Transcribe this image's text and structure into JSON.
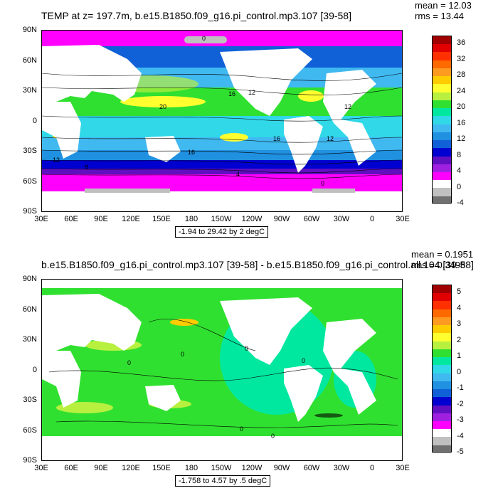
{
  "panels": [
    {
      "title": "TEMP at z= 197.7m, b.e15.B1850.f09_g16.pi_control.mp3.107 [39-58]",
      "mean_label": "mean = 12.03",
      "rms_label": "rms = 13.44",
      "range_label": "-1.94 to 29.42 by 2 degC",
      "lat_ticks": [
        "90N",
        "60N",
        "30N",
        "0",
        "30S",
        "60S",
        "90S"
      ],
      "lon_ticks": [
        "30E",
        "60E",
        "90E",
        "120E",
        "150E",
        "180",
        "150W",
        "120W",
        "90W",
        "60W",
        "30W",
        "0",
        "30E"
      ],
      "colorbar_labels": [
        "36",
        "32",
        "28",
        "24",
        "20",
        "16",
        "12",
        "8",
        "4",
        "0",
        "-4"
      ],
      "colorbar_colors": [
        "#a00000",
        "#e00000",
        "#ff3000",
        "#ff6a00",
        "#ff9a20",
        "#ffcc00",
        "#ffff30",
        "#b8f040",
        "#30e030",
        "#00e8a0",
        "#30d8e8",
        "#40b8f0",
        "#2090e0",
        "#1060d8",
        "#0000d0",
        "#6010c0",
        "#a020e0",
        "#ff00ff",
        "#ffffff",
        "#c0c0c0",
        "#707070"
      ],
      "contour_labels": [
        "0",
        "16",
        "20",
        "12",
        "12",
        "16",
        "12",
        "8",
        "4",
        "16",
        "12",
        "0"
      ]
    },
    {
      "title": "b.e15.B1850.f09_g16.pi_control.mp3.107 [39-58] - b.e15.B1850.f09_g16.pi_control.all.104 [39-58]",
      "mean_label": "mean = 0.1951",
      "rms_label": "rms = 0.3498",
      "range_label": "-1.758 to 4.57 by .5 degC",
      "lat_ticks": [
        "90N",
        "60N",
        "30N",
        "0",
        "30S",
        "60S",
        "90S"
      ],
      "lon_ticks": [
        "30E",
        "60E",
        "90E",
        "120E",
        "150E",
        "180",
        "150W",
        "120W",
        "90W",
        "60W",
        "30W",
        "0",
        "30E"
      ],
      "colorbar_labels": [
        "5",
        "4",
        "3",
        "2",
        "1",
        "0",
        "-1",
        "-2",
        "-3",
        "-4",
        "-5"
      ],
      "colorbar_colors": [
        "#a00000",
        "#e00000",
        "#ff3000",
        "#ff6a00",
        "#ff9a20",
        "#ffcc00",
        "#ffff30",
        "#b8f040",
        "#30e030",
        "#00e8a0",
        "#30d8e8",
        "#40b8f0",
        "#2090e0",
        "#1060d8",
        "#0000d0",
        "#6010c0",
        "#a020e0",
        "#ff00ff",
        "#ffffff",
        "#c0c0c0",
        "#707070"
      ],
      "contour_labels": [
        "0",
        "0",
        "0",
        "0",
        "0",
        "0"
      ]
    }
  ]
}
